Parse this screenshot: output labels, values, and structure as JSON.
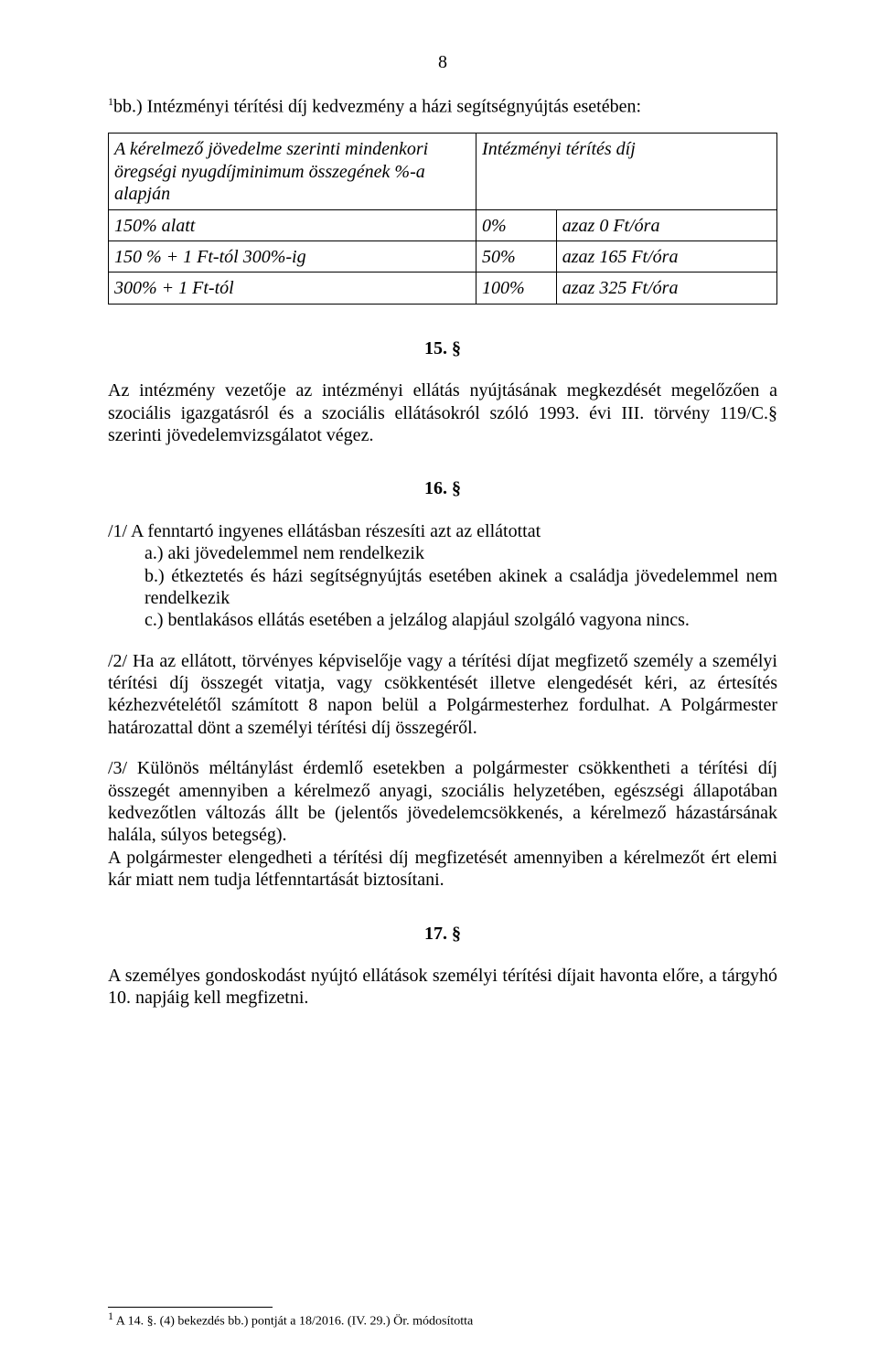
{
  "page_number": "8",
  "heading_bb_prefix_sup": "1",
  "heading_bb": "bb.) Intézményi térítési díj kedvezmény a házi segítségnyújtás esetében:",
  "table": {
    "header_left": "A kérelmező jövedelme szerinti mindenkori öregségi nyugdíjminimum összegének %-a alapján",
    "header_right": "Intézményi térítés díj",
    "rows": [
      {
        "c1": "150% alatt",
        "c2": "0%",
        "c3": "azaz 0 Ft/óra"
      },
      {
        "c1": "150 % + 1 Ft-tól 300%-ig",
        "c2": "50%",
        "c3": "azaz 165 Ft/óra"
      },
      {
        "c1": "300% + 1 Ft-tól",
        "c2": "100%",
        "c3": "azaz 325 Ft/óra"
      }
    ]
  },
  "s15": {
    "num": "15. §",
    "text": "Az intézmény vezetője az intézményi ellátás nyújtásának megkezdését megelőzően a szociális igazgatásról és a szociális ellátásokról szóló 1993. évi III. törvény 119/C.§ szerinti jövedelemvizsgálatot végez."
  },
  "s16": {
    "num": "16. §",
    "p1_lead": "/1/ A fenntartó ingyenes ellátásban részesíti azt az ellátottat",
    "p1_a": "a.) aki jövedelemmel nem rendelkezik",
    "p1_b": "b.) étkeztetés és házi segítségnyújtás esetében akinek a családja jövedelemmel nem rendelkezik",
    "p1_c": "c.) bentlakásos ellátás esetében a jelzálog alapjául szolgáló vagyona nincs.",
    "p2": "/2/ Ha az ellátott, törvényes képviselője vagy a térítési díjat megfizető személy a személyi térítési díj összegét vitatja, vagy csökkentését illetve elengedését kéri, az értesítés kézhezvételétől számított 8 napon belül a Polgármesterhez fordulhat. A Polgármester határozattal dönt a személyi térítési díj összegéről.",
    "p3a": "/3/ Különös méltánylást érdemlő esetekben a polgármester csökkentheti a térítési díj összegét amennyiben a kérelmező anyagi, szociális helyzetében, egészségi állapotában kedvezőtlen változás állt be (jelentős jövedelemcsökkenés, a kérelmező házastársának halála, súlyos betegség).",
    "p3b": "A polgármester elengedheti a térítési díj megfizetését amennyiben a kérelmezőt ért elemi kár miatt nem tudja létfenntartását biztosítani."
  },
  "s17": {
    "num": "17. §",
    "text": "A személyes gondoskodást nyújtó ellátások személyi térítési díjait havonta előre, a tárgyhó 10. napjáig kell megfizetni."
  },
  "footnote": {
    "marker": "1",
    "text": " A 14. §. (4) bekezdés bb.) pontját a 18/2016. (IV. 29.) Ör. módosította"
  }
}
